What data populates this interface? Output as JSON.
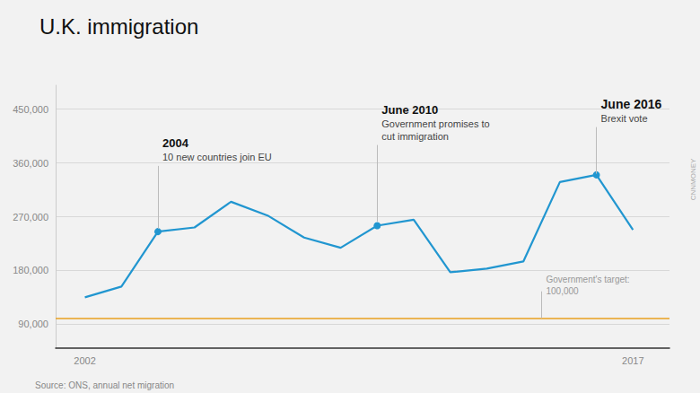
{
  "chart_data": {
    "type": "line",
    "title": "U.K. immigration",
    "source": "Source: ONS, annual net migration",
    "credit": "CNNMONEY",
    "background": "#f2f2f2",
    "color": "#2196d0",
    "x": [
      2002,
      2003,
      2004,
      2005,
      2006,
      2007,
      2008,
      2009,
      2010,
      2011,
      2012,
      2013,
      2014,
      2015,
      2016,
      2017
    ],
    "values": [
      135000,
      153000,
      245000,
      252000,
      295000,
      272000,
      235000,
      218000,
      255000,
      265000,
      177000,
      183000,
      195000,
      328000,
      340000,
      248000
    ],
    "marked_x": [
      2004,
      2010,
      2016
    ],
    "target": {
      "value": 100000,
      "color": "#e8a020"
    },
    "annotations": [
      {
        "x": 2004,
        "y_from": 250000,
        "y_to": 355000,
        "title": "2004",
        "text": [
          "10 new countries join EU"
        ]
      },
      {
        "x": 2010,
        "y_from": 262000,
        "y_to": 390000,
        "title": "June 2010",
        "text": [
          "Government promises to",
          "cut immigration"
        ]
      },
      {
        "x": 2016,
        "y_from": 342000,
        "y_to": 420000,
        "title": "June 2016",
        "text": [
          "Brexit vote"
        ]
      },
      {
        "x": 2014.5,
        "y_from": 100000,
        "y_to": 145000,
        "text": [
          "Government's target:",
          "100,000"
        ]
      }
    ],
    "xlim": [
      2001.2,
      2018.0
    ],
    "xticks": [
      2002,
      2017
    ],
    "ylim": [
      50000,
      490000
    ],
    "yticks": [
      {
        "value": 90000,
        "label": "90,000"
      },
      {
        "value": 180000,
        "label": "180,000"
      },
      {
        "value": 270000,
        "label": "270,000"
      },
      {
        "value": 360000,
        "label": "360,000"
      },
      {
        "value": 450000,
        "label": "450,000"
      }
    ],
    "grid": true
  }
}
